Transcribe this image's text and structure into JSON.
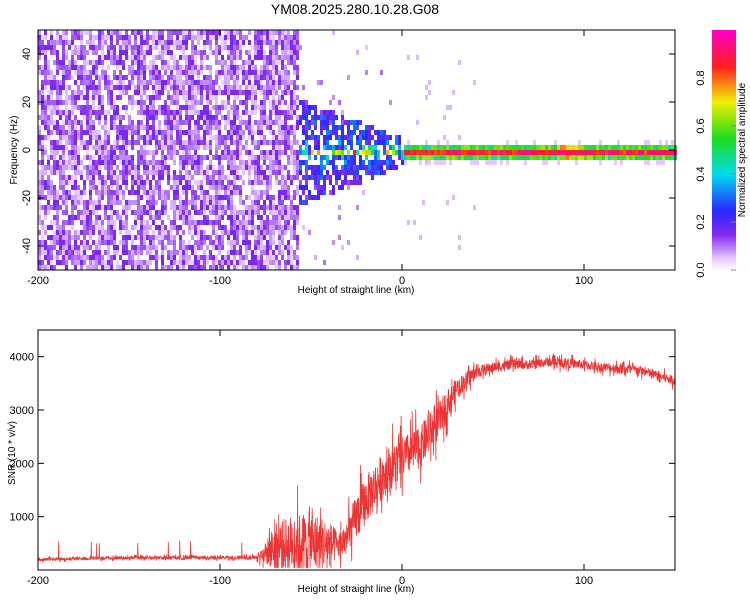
{
  "title": "YM08.2025.280.10.28.G08",
  "chart_data": [
    {
      "type": "heatmap",
      "xlabel": "Height of straight line (km)",
      "ylabel": "Frequency (Hz)",
      "xlim": [
        -200,
        150
      ],
      "ylim": [
        -50,
        50
      ],
      "xticks": [
        -200,
        -100,
        0,
        100
      ],
      "yticks": [
        -40,
        -20,
        0,
        20,
        40
      ],
      "colorbar": {
        "label": "Normalized spectral amplitude",
        "range": [
          0.0,
          1.0
        ],
        "ticks": [
          0.0,
          0.2,
          0.4,
          0.6,
          0.8
        ],
        "colormap": "rainbow-white-purple-blue-cyan-green-yellow-red-magenta"
      },
      "regions": [
        {
          "x_range": [
            -200,
            -57
          ],
          "description": "broadband noise",
          "amplitude": 0.1
        },
        {
          "x_range": [
            -57,
            0
          ],
          "description": "signal emerging near 0 Hz",
          "amplitude_peak": 0.5
        },
        {
          "x_range": [
            0,
            150
          ],
          "description": "narrow tone at 0 Hz",
          "amplitude_peak": 0.95
        }
      ],
      "tone_frequency_hz": 0
    },
    {
      "type": "line",
      "xlabel": "Height of straight line (km)",
      "ylabel": "SNR (10 * v/v)",
      "xlim": [
        -200,
        150
      ],
      "ylim": [
        0,
        4500
      ],
      "xticks": [
        -200,
        -100,
        0,
        100
      ],
      "yticks": [
        1000,
        2000,
        3000,
        4000
      ],
      "series": [
        {
          "name": "SNR",
          "color": "#ee3333",
          "x": [
            -200,
            -150,
            -100,
            -80,
            -75,
            -70,
            -60,
            -50,
            -40,
            -35,
            -30,
            -25,
            -20,
            -10,
            0,
            10,
            20,
            30,
            40,
            50,
            60,
            70,
            80,
            90,
            100,
            110,
            120,
            130,
            140,
            150
          ],
          "base": [
            200,
            230,
            230,
            240,
            320,
            420,
            500,
            520,
            480,
            450,
            600,
            1000,
            1300,
            1800,
            2100,
            2300,
            2800,
            3400,
            3700,
            3800,
            3850,
            3850,
            3900,
            3880,
            3850,
            3800,
            3780,
            3750,
            3650,
            3550
          ],
          "spread": [
            60,
            60,
            70,
            70,
            400,
            900,
            1100,
            1200,
            900,
            500,
            700,
            900,
            900,
            900,
            800,
            800,
            700,
            400,
            250,
            200,
            180,
            180,
            180,
            180,
            180,
            170,
            200,
            180,
            180,
            180
          ]
        }
      ]
    }
  ]
}
